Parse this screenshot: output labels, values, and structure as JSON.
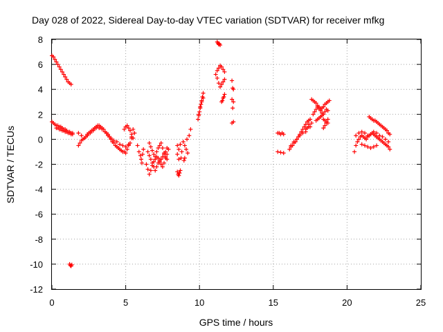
{
  "chart_data": {
    "type": "scatter",
    "title": "Day 028 of 2022, Sidereal Day-to-day VTEC variation (SDTVAR) for receiver mfkg",
    "xlabel": "GPS time / hours",
    "ylabel": "SDTVAR / TECUs",
    "xlim": [
      0,
      25
    ],
    "ylim": [
      -12,
      8
    ],
    "xticks": [
      "0",
      "5",
      "10",
      "15",
      "20",
      "25"
    ],
    "yticks": [
      "8",
      "6",
      "4",
      "2",
      "0",
      "-2",
      "-4",
      "-6",
      "-8",
      "-10",
      "-12"
    ],
    "grid": true,
    "marker": "+",
    "color": "#ff0000",
    "series": [
      {
        "name": "SDTVAR",
        "x": [
          0.0,
          0.1,
          0.2,
          0.3,
          0.4,
          0.5,
          0.6,
          0.7,
          0.8,
          0.9,
          1.0,
          1.1,
          1.2,
          1.3,
          0.0,
          0.1,
          0.2,
          0.3,
          0.4,
          0.5,
          0.6,
          0.7,
          0.8,
          0.9,
          1.0,
          1.1,
          1.2,
          1.3,
          1.4,
          0.3,
          0.4,
          0.5,
          0.6,
          0.7,
          0.8,
          0.9,
          1.0,
          1.1,
          1.2,
          1.3,
          1.4,
          1.2,
          1.25,
          1.3,
          1.35,
          1.8,
          1.9,
          2.0,
          2.1,
          2.2,
          2.3,
          2.4,
          2.5,
          2.6,
          2.7,
          2.8,
          2.9,
          3.0,
          3.1,
          3.2,
          3.3,
          3.4,
          3.5,
          3.6,
          3.7,
          3.8,
          3.9,
          4.0,
          4.1,
          4.2,
          4.3,
          4.4,
          4.5,
          4.6,
          4.7,
          4.8,
          4.9,
          5.0,
          5.1,
          5.2,
          5.3,
          5.4,
          5.5,
          5.6,
          1.8,
          2.0,
          2.2,
          2.4,
          2.6,
          2.8,
          3.0,
          3.2,
          3.4,
          3.6,
          3.8,
          4.0,
          4.2,
          4.4,
          4.6,
          4.8,
          5.0,
          5.2,
          5.4,
          4.9,
          5.0,
          5.1,
          5.2,
          5.3,
          5.4,
          5.5,
          5.8,
          5.9,
          6.0,
          6.05,
          6.1,
          6.15,
          6.2,
          6.4,
          6.5,
          6.6,
          6.7,
          6.8,
          6.9,
          7.0,
          7.1,
          7.2,
          7.3,
          7.4,
          7.5,
          7.6,
          7.7,
          7.8,
          7.9,
          6.5,
          6.6,
          6.7,
          6.8,
          6.9,
          7.0,
          7.1,
          7.2,
          7.3,
          7.4,
          7.5,
          7.6,
          7.7,
          7.8,
          6.6,
          6.7,
          6.8,
          6.9,
          7.0,
          7.1,
          7.2,
          7.3,
          7.4,
          7.5,
          7.6,
          7.7,
          7.8,
          8.5,
          8.55,
          8.6,
          8.65,
          8.7,
          8.75,
          8.8,
          8.5,
          8.6,
          8.7,
          8.5,
          8.6,
          8.9,
          9.0,
          9.1,
          9.2,
          9.0,
          8.95,
          9.15,
          9.3,
          9.4,
          9.9,
          9.95,
          10.0,
          10.05,
          10.1,
          10.15,
          10.2,
          10.25,
          9.95,
          10.05,
          10.15,
          10.25,
          11.2,
          11.25,
          11.3,
          11.35,
          11.4,
          11.1,
          11.2,
          11.3,
          11.4,
          11.5,
          11.6,
          11.7,
          11.2,
          11.3,
          11.4,
          11.5,
          11.6,
          11.7,
          11.5,
          11.6,
          11.7,
          11.55,
          11.65,
          12.2,
          12.25,
          12.3,
          12.2,
          12.3,
          12.25,
          12.3,
          12.2,
          15.3,
          15.4,
          15.5,
          15.6,
          15.7,
          15.3,
          15.5,
          15.7,
          16.1,
          16.2,
          16.3,
          16.4,
          16.5,
          16.6,
          16.7,
          16.8,
          16.9,
          17.0,
          17.1,
          17.2,
          17.3,
          17.4,
          17.5,
          16.2,
          16.4,
          16.6,
          16.8,
          17.0,
          17.2,
          17.4,
          17.6,
          17.2,
          17.3,
          17.4,
          17.5,
          17.6,
          17.7,
          17.8,
          17.9,
          18.0,
          18.1,
          18.2,
          18.3,
          18.4,
          18.5,
          18.6,
          18.7,
          18.8,
          17.7,
          17.8,
          17.9,
          18.0,
          18.1,
          18.2,
          18.3,
          18.4,
          18.5,
          18.6,
          18.7,
          17.9,
          18.0,
          18.1,
          18.2,
          18.3,
          18.4,
          18.5,
          18.6,
          18.7,
          18.4,
          18.5,
          18.6,
          18.7,
          20.5,
          20.6,
          20.7,
          20.8,
          20.9,
          21.0,
          21.1,
          21.2,
          21.3,
          21.4,
          21.5,
          21.6,
          21.7,
          21.8,
          21.9,
          22.0,
          22.1,
          22.2,
          22.3,
          22.4,
          22.5,
          22.6,
          22.7,
          22.8,
          22.9,
          20.6,
          20.8,
          21.0,
          21.2,
          21.4,
          21.6,
          21.8,
          22.0,
          22.2,
          22.4,
          22.6,
          22.8,
          21.5,
          21.6,
          21.7,
          21.8,
          21.9,
          22.0,
          22.1,
          22.2,
          22.3,
          22.4,
          22.5,
          22.6,
          22.7,
          22.8,
          22.9,
          21.0,
          21.2,
          21.4,
          21.6,
          21.8,
          22.0
        ],
        "y": [
          6.7,
          6.6,
          6.4,
          6.2,
          6.0,
          5.8,
          5.6,
          5.4,
          5.2,
          5.0,
          4.8,
          4.6,
          4.5,
          4.4,
          1.4,
          1.3,
          1.2,
          1.1,
          1.1,
          1.0,
          1.0,
          0.9,
          0.8,
          0.8,
          0.7,
          0.6,
          0.6,
          0.5,
          0.5,
          0.9,
          0.9,
          0.8,
          0.8,
          0.7,
          0.7,
          0.6,
          0.6,
          0.5,
          0.5,
          0.4,
          0.4,
          -10.0,
          -10.1,
          -10.15,
          -10.05,
          -0.5,
          -0.3,
          -0.1,
          0.0,
          0.1,
          0.2,
          0.4,
          0.5,
          0.6,
          0.7,
          0.8,
          0.9,
          1.0,
          1.1,
          1.1,
          1.0,
          0.9,
          0.8,
          0.6,
          0.5,
          0.3,
          0.2,
          0.0,
          -0.2,
          -0.3,
          -0.5,
          -0.6,
          -0.7,
          -0.8,
          -0.9,
          -1.0,
          -1.0,
          -1.1,
          -0.8,
          -0.5,
          -0.3,
          0.2,
          0.8,
          0.5,
          0.5,
          0.3,
          0.1,
          0.3,
          0.5,
          0.7,
          0.9,
          0.9,
          0.8,
          0.6,
          0.4,
          0.1,
          -0.1,
          -0.2,
          -0.4,
          -0.5,
          -0.6,
          -0.4,
          0.1,
          0.8,
          1.0,
          1.1,
          0.9,
          0.7,
          0.4,
          0.1,
          -0.5,
          -1.0,
          -1.3,
          -1.6,
          -1.9,
          -1.2,
          -0.8,
          -2.0,
          -2.4,
          -2.8,
          -2.5,
          -2.1,
          -1.8,
          -1.6,
          -1.4,
          -1.5,
          -1.8,
          -2.0,
          -2.2,
          -1.9,
          -1.5,
          -1.2,
          -0.8,
          -1.0,
          -1.3,
          -1.6,
          -1.9,
          -2.2,
          -2.5,
          -2.2,
          -1.9,
          -1.7,
          -1.6,
          -1.4,
          -1.2,
          -1.0,
          -0.7,
          -0.3,
          -0.6,
          -0.9,
          -1.2,
          -1.4,
          -1.0,
          -0.7,
          -0.5,
          -0.3,
          -0.7,
          -1.1,
          -1.4,
          -1.6,
          -2.6,
          -2.8,
          -2.9,
          -2.7,
          -2.5,
          -1.5,
          -1.0,
          -0.5,
          -0.8,
          -0.4,
          -1.2,
          -1.6,
          -0.2,
          -0.5,
          -0.8,
          -1.1,
          -1.5,
          -1.7,
          0.0,
          0.3,
          0.8,
          1.6,
          1.9,
          2.2,
          2.5,
          2.8,
          3.1,
          3.4,
          3.7,
          2.0,
          2.6,
          3.0,
          3.3,
          7.8,
          7.7,
          7.6,
          7.65,
          7.55,
          5.2,
          5.5,
          5.7,
          5.9,
          5.8,
          5.6,
          5.4,
          4.9,
          4.5,
          4.2,
          4.4,
          4.6,
          4.8,
          3.0,
          3.3,
          3.6,
          3.1,
          3.4,
          4.7,
          4.1,
          4.0,
          3.2,
          3.0,
          2.5,
          1.4,
          1.3,
          0.5,
          0.5,
          0.4,
          0.5,
          0.4,
          -1.0,
          -1.05,
          -1.1,
          -0.8,
          -0.6,
          -0.5,
          -0.3,
          -0.2,
          0.0,
          0.2,
          0.4,
          0.6,
          0.8,
          1.0,
          1.2,
          1.4,
          1.5,
          1.6,
          -0.5,
          -0.2,
          0.0,
          0.3,
          0.5,
          0.8,
          1.0,
          1.3,
          0.6,
          0.9,
          1.2,
          1.0,
          3.2,
          3.1,
          3.0,
          2.9,
          2.7,
          2.6,
          2.4,
          2.5,
          2.6,
          2.8,
          2.9,
          3.0,
          3.1,
          2.0,
          2.2,
          2.4,
          2.6,
          2.5,
          2.3,
          2.1,
          2.0,
          2.2,
          2.4,
          2.3,
          1.5,
          1.6,
          1.7,
          1.8,
          1.9,
          1.6,
          1.5,
          1.4,
          1.3,
          0.9,
          1.1,
          1.3,
          1.6,
          -1.0,
          -0.5,
          -0.2,
          0.0,
          0.2,
          0.3,
          0.2,
          0.1,
          0.0,
          0.2,
          0.3,
          0.4,
          0.5,
          0.4,
          0.3,
          0.2,
          0.1,
          0.0,
          -0.1,
          -0.2,
          -0.3,
          -0.4,
          -0.5,
          -0.6,
          -0.8,
          0.3,
          0.5,
          0.6,
          0.5,
          0.3,
          0.4,
          0.6,
          0.5,
          0.3,
          0.2,
          0.0,
          -0.2,
          1.8,
          1.7,
          1.6,
          1.5,
          1.5,
          1.4,
          1.3,
          1.2,
          1.1,
          1.0,
          0.9,
          0.8,
          0.7,
          0.5,
          0.4,
          -0.4,
          -0.5,
          -0.6,
          -0.7,
          -0.6,
          -0.5
        ]
      }
    ]
  }
}
